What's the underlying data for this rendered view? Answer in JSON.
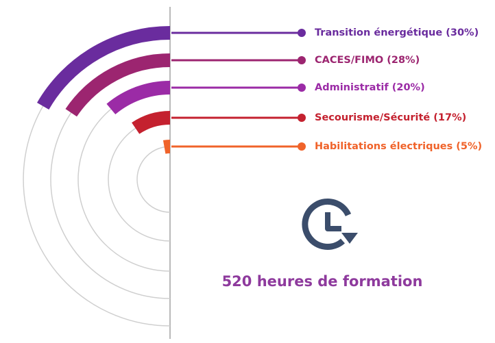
{
  "chart_data": {
    "type": "radial_bar",
    "categories": [
      "Transition énergétique (30%)",
      "CACES/FIMO (28%)",
      "Administratif (20%)",
      "Secourisme/Sécurité (17%)",
      "Habilitations électriques (5%)"
    ],
    "values": [
      30,
      28,
      20,
      17,
      5
    ],
    "colors": [
      "#6a2c9e",
      "#9c2570",
      "#9b2ba6",
      "#c4212f",
      "#f0632a"
    ],
    "annotation": "520 heures de formation"
  }
}
